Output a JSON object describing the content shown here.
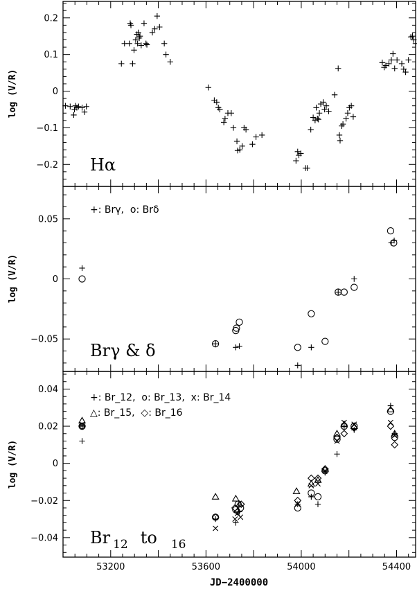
{
  "chart_data": [
    {
      "type": "scatter",
      "panel_label": {
        "main": "Hα"
      },
      "ylabel": "log (V/R)",
      "xlim": [
        53000,
        54480
      ],
      "ylim": [
        -0.26,
        0.245
      ],
      "yticks": [
        -0.2,
        -0.1,
        0,
        0.1,
        0.2
      ],
      "ytick_labels": [
        "−0.2",
        "−0.1",
        "0",
        "0.1",
        "0.2"
      ],
      "series": [
        {
          "marker": "plus",
          "points": [
            [
              53010,
              -0.04
            ],
            [
              53030,
              -0.042
            ],
            [
              53045,
              -0.065
            ],
            [
              53048,
              -0.05
            ],
            [
              53052,
              -0.04
            ],
            [
              53058,
              -0.045
            ],
            [
              53065,
              -0.042
            ],
            [
              53080,
              -0.045
            ],
            [
              53090,
              -0.057
            ],
            [
              53098,
              -0.042
            ],
            [
              53245,
              0.075
            ],
            [
              53258,
              0.13
            ],
            [
              53278,
              0.13
            ],
            [
              53282,
              0.185
            ],
            [
              53285,
              0.18
            ],
            [
              53292,
              0.075
            ],
            [
              53298,
              0.112
            ],
            [
              53305,
              0.14
            ],
            [
              53310,
              0.155
            ],
            [
              53313,
              0.13
            ],
            [
              53316,
              0.16
            ],
            [
              53320,
              0.145
            ],
            [
              53323,
              0.15
            ],
            [
              53328,
              0.125
            ],
            [
              53340,
              0.185
            ],
            [
              53348,
              0.13
            ],
            [
              53352,
              0.127
            ],
            [
              53375,
              0.16
            ],
            [
              53385,
              0.17
            ],
            [
              53395,
              0.205
            ],
            [
              53405,
              0.175
            ],
            [
              53425,
              0.13
            ],
            [
              53432,
              0.1
            ],
            [
              53450,
              0.08
            ],
            [
              53610,
              0.01
            ],
            [
              53635,
              -0.025
            ],
            [
              53645,
              -0.03
            ],
            [
              53652,
              -0.045
            ],
            [
              53658,
              -0.05
            ],
            [
              53675,
              -0.085
            ],
            [
              53680,
              -0.075
            ],
            [
              53692,
              -0.06
            ],
            [
              53706,
              -0.06
            ],
            [
              53715,
              -0.1
            ],
            [
              53730,
              -0.137
            ],
            [
              53733,
              -0.162
            ],
            [
              53742,
              -0.16
            ],
            [
              53752,
              -0.15
            ],
            [
              53760,
              -0.1
            ],
            [
              53768,
              -0.105
            ],
            [
              53795,
              -0.145
            ],
            [
              53810,
              -0.125
            ],
            [
              53835,
              -0.12
            ],
            [
              53978,
              -0.19
            ],
            [
              53985,
              -0.165
            ],
            [
              53990,
              -0.175
            ],
            [
              53998,
              -0.17
            ],
            [
              54018,
              -0.21
            ],
            [
              54025,
              -0.21
            ],
            [
              54040,
              -0.105
            ],
            [
              54050,
              -0.072
            ],
            [
              54058,
              -0.08
            ],
            [
              54063,
              -0.045
            ],
            [
              54068,
              -0.075
            ],
            [
              54072,
              -0.077
            ],
            [
              54076,
              -0.06
            ],
            [
              54082,
              -0.035
            ],
            [
              54092,
              -0.03
            ],
            [
              54098,
              -0.05
            ],
            [
              54105,
              -0.04
            ],
            [
              54115,
              -0.055
            ],
            [
              54140,
              -0.01
            ],
            [
              54155,
              0.062
            ],
            [
              54160,
              -0.12
            ],
            [
              54163,
              -0.135
            ],
            [
              54170,
              -0.095
            ],
            [
              54175,
              -0.09
            ],
            [
              54188,
              -0.075
            ],
            [
              54195,
              -0.06
            ],
            [
              54202,
              -0.045
            ],
            [
              54210,
              -0.04
            ],
            [
              54218,
              -0.07
            ],
            [
              54340,
              0.078
            ],
            [
              54348,
              0.065
            ],
            [
              54355,
              0.07
            ],
            [
              54368,
              0.075
            ],
            [
              54378,
              0.085
            ],
            [
              54385,
              0.102
            ],
            [
              54392,
              0.062
            ],
            [
              54402,
              0.085
            ],
            [
              54422,
              0.075
            ],
            [
              54430,
              0.06
            ],
            [
              54438,
              0.052
            ],
            [
              54450,
              0.085
            ],
            [
              54460,
              0.148
            ],
            [
              54467,
              0.15
            ],
            [
              54472,
              0.14
            ],
            [
              54480,
              0.13
            ]
          ]
        }
      ]
    },
    {
      "type": "scatter",
      "panel_label": {
        "main": "Brγ & δ"
      },
      "legend": "+: Brγ,  o: Brδ",
      "ylabel": "log (V/R)",
      "xlim": [
        53000,
        54480
      ],
      "ylim": [
        -0.077,
        0.077
      ],
      "yticks": [
        -0.05,
        0,
        0.05
      ],
      "ytick_labels": [
        "−0.05",
        "0",
        "0.05"
      ],
      "series": [
        {
          "name": "Brγ",
          "marker": "plus",
          "points": [
            [
              53080,
              0.009
            ],
            [
              53640,
              -0.054
            ],
            [
              53725,
              -0.057
            ],
            [
              53740,
              -0.056
            ],
            [
              53985,
              -0.072
            ],
            [
              54042,
              -0.057
            ],
            [
              54155,
              -0.011
            ],
            [
              54222,
              0.0
            ],
            [
              54378,
              0.03
            ],
            [
              54390,
              0.032
            ]
          ]
        },
        {
          "name": "Brδ",
          "marker": "circle",
          "points": [
            [
              53080,
              0.0
            ],
            [
              53640,
              -0.054
            ],
            [
              53725,
              -0.043
            ],
            [
              53728,
              -0.041
            ],
            [
              53740,
              -0.036
            ],
            [
              53985,
              -0.057
            ],
            [
              54042,
              -0.029
            ],
            [
              54100,
              -0.052
            ],
            [
              54155,
              -0.011
            ],
            [
              54180,
              -0.011
            ],
            [
              54222,
              -0.007
            ],
            [
              54375,
              0.04
            ],
            [
              54388,
              0.03
            ]
          ]
        }
      ]
    },
    {
      "type": "scatter",
      "panel_label": {
        "main": "Br",
        "sub1": "12",
        "mid": "to",
        "sub2": "16"
      },
      "legend_lines": [
        "+: Br_12,  o: Br_13,  x: Br_14",
        "△: Br_15,  ◇: Br_16"
      ],
      "ylabel": "log (V/R)",
      "xlabel": "JD−2400000",
      "xlim": [
        53000,
        54480
      ],
      "ylim": [
        -0.0505,
        0.0495
      ],
      "yticks": [
        -0.04,
        -0.02,
        0,
        0.02,
        0.04
      ],
      "ytick_labels": [
        "−0.04",
        "−0.02",
        "0",
        "0.02",
        "0.04"
      ],
      "xticks": [
        53200,
        53600,
        54000,
        54400
      ],
      "xtick_labels": [
        "53200",
        "53600",
        "54000",
        "54400"
      ],
      "series": [
        {
          "name": "Br_12",
          "marker": "plus",
          "points": [
            [
              53080,
              0.012
            ],
            [
              53080,
              0.02
            ],
            [
              53640,
              -0.03
            ],
            [
              53725,
              -0.032
            ],
            [
              53740,
              -0.026
            ],
            [
              53985,
              -0.022
            ],
            [
              54042,
              -0.018
            ],
            [
              54070,
              -0.022
            ],
            [
              54100,
              -0.005
            ],
            [
              54150,
              0.005
            ],
            [
              54180,
              0.02
            ],
            [
              54222,
              0.018
            ],
            [
              54375,
              0.031
            ],
            [
              54392,
              0.016
            ]
          ]
        },
        {
          "name": "Br_13",
          "marker": "circle",
          "points": [
            [
              53080,
              0.02
            ],
            [
              53640,
              -0.029
            ],
            [
              53725,
              -0.025
            ],
            [
              53735,
              -0.022
            ],
            [
              53745,
              -0.024
            ],
            [
              53985,
              -0.024
            ],
            [
              54042,
              -0.016
            ],
            [
              54070,
              -0.018
            ],
            [
              54100,
              -0.004
            ],
            [
              54150,
              0.013
            ],
            [
              54180,
              0.02
            ],
            [
              54222,
              0.02
            ],
            [
              54375,
              0.028
            ],
            [
              54392,
              0.014
            ]
          ]
        },
        {
          "name": "Br_14",
          "marker": "x",
          "points": [
            [
              53080,
              0.021
            ],
            [
              53640,
              -0.035
            ],
            [
              53722,
              -0.03
            ],
            [
              53732,
              -0.027
            ],
            [
              53745,
              -0.029
            ],
            [
              53985,
              -0.022
            ],
            [
              54042,
              -0.012
            ],
            [
              54070,
              -0.011
            ],
            [
              54100,
              -0.004
            ],
            [
              54150,
              0.012
            ],
            [
              54180,
              0.022
            ],
            [
              54222,
              0.021
            ],
            [
              54375,
              0.022
            ],
            [
              54392,
              0.015
            ]
          ]
        },
        {
          "name": "Br_15",
          "marker": "triangle",
          "points": [
            [
              53080,
              0.023
            ],
            [
              53640,
              -0.018
            ],
            [
              53725,
              -0.019
            ],
            [
              53740,
              -0.022
            ],
            [
              53980,
              -0.015
            ],
            [
              54042,
              -0.011
            ],
            [
              54070,
              -0.009
            ],
            [
              54100,
              -0.003
            ],
            [
              54150,
              0.016
            ],
            [
              54180,
              0.021
            ],
            [
              54222,
              0.02
            ],
            [
              54375,
              0.029
            ],
            [
              54392,
              0.016
            ]
          ]
        },
        {
          "name": "Br_16",
          "marker": "diamond",
          "points": [
            [
              53080,
              0.02
            ],
            [
              53640,
              -0.029
            ],
            [
              53722,
              -0.024
            ],
            [
              53732,
              -0.026
            ],
            [
              53748,
              -0.022
            ],
            [
              53985,
              -0.02
            ],
            [
              54042,
              -0.008
            ],
            [
              54070,
              -0.008
            ],
            [
              54100,
              -0.003
            ],
            [
              54150,
              0.014
            ],
            [
              54180,
              0.016
            ],
            [
              54222,
              0.019
            ],
            [
              54375,
              0.02
            ],
            [
              54392,
              0.01
            ]
          ]
        }
      ]
    }
  ]
}
